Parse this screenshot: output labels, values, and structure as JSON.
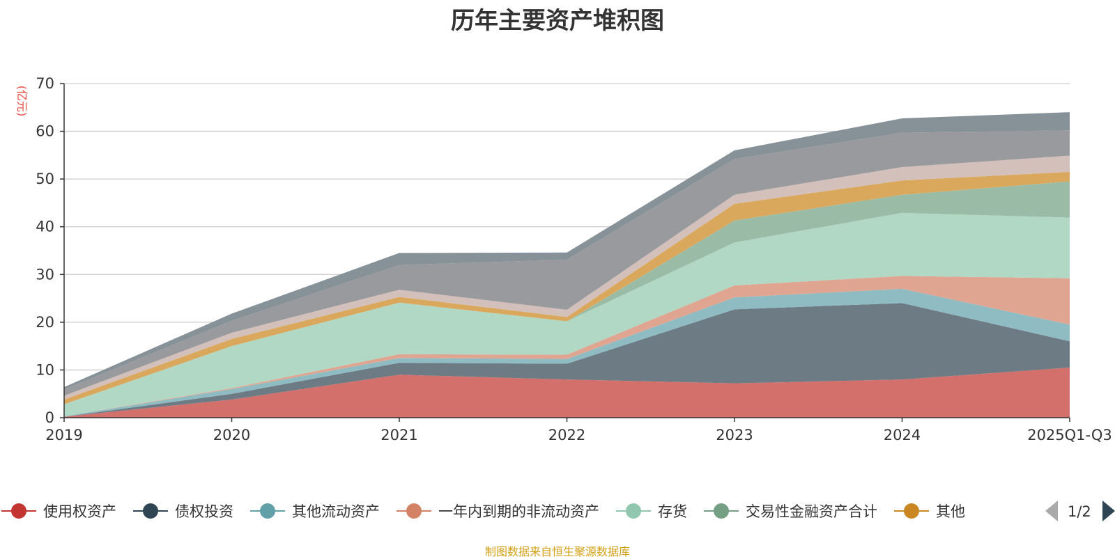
{
  "chart_data": {
    "type": "area",
    "stacked": true,
    "title": "历年主要资产堆积图",
    "ylabel": "(亿元)",
    "xlabel": "",
    "ylim": [
      0,
      70
    ],
    "yticks": [
      0,
      10,
      20,
      30,
      40,
      50,
      60,
      70
    ],
    "categories": [
      "2019",
      "2020",
      "2021",
      "2022",
      "2023",
      "2024",
      "2025Q1-Q3"
    ],
    "series": [
      {
        "name": "使用权资产",
        "color": "#c23531",
        "fill": "#d4706c",
        "values": [
          0.2,
          3.8,
          9.0,
          8.0,
          7.2,
          8.0,
          10.5
        ]
      },
      {
        "name": "债权投资",
        "color": "#2f4554",
        "fill": "#6d7b85",
        "values": [
          0.0,
          1.2,
          2.5,
          3.3,
          15.5,
          16.0,
          5.5
        ]
      },
      {
        "name": "其他流动资产",
        "color": "#61a0a8",
        "fill": "#8fbcc2",
        "values": [
          0.1,
          1.0,
          1.0,
          1.0,
          2.5,
          3.0,
          3.5
        ]
      },
      {
        "name": "一年内到期的非流动资产",
        "color": "#d48265",
        "fill": "#e0a591",
        "values": [
          0.0,
          0.2,
          0.8,
          0.9,
          2.5,
          2.7,
          9.7
        ]
      },
      {
        "name": "存货",
        "color": "#91c7ae",
        "fill": "#b0d8c5",
        "values": [
          2.5,
          8.8,
          10.8,
          7.0,
          9.0,
          13.2,
          12.7
        ]
      },
      {
        "name": "交易性金融资产合计",
        "color": "#749f83",
        "fill": "#9abca6",
        "values": [
          0.0,
          0.0,
          0.0,
          0.0,
          4.6,
          3.8,
          7.6
        ]
      },
      {
        "name": "其他",
        "color": "#ca8622",
        "fill": "#daa85c",
        "values": [
          1.0,
          1.5,
          1.2,
          0.9,
          3.5,
          3.0,
          2.0
        ]
      },
      {
        "name": "",
        "color": "#bda29a",
        "fill": "#d3c0ba",
        "values": [
          0.8,
          1.3,
          1.5,
          1.5,
          1.9,
          2.8,
          3.4
        ]
      },
      {
        "name": "",
        "color": "#6e7074",
        "fill": "#999a9e",
        "values": [
          1.3,
          2.5,
          5.2,
          10.5,
          7.5,
          7.2,
          5.3
        ]
      },
      {
        "name": "",
        "color": "#546570",
        "fill": "#879198",
        "values": [
          0.5,
          1.5,
          2.5,
          1.5,
          1.8,
          3.0,
          3.8
        ]
      }
    ]
  },
  "legend": {
    "page_indicator": "1/2",
    "prev_icon": "triangle-left-icon",
    "next_icon": "triangle-right-icon"
  },
  "colors": {
    "axis": "#333333",
    "grid": "#cccccc",
    "unit_label": "#e8473f",
    "footer": "#d4a017",
    "pager_disabled": "#aaaaaa",
    "pager_active": "#2f4554"
  },
  "footer": {
    "source_text": "制图数据来自恒生聚源数据库"
  }
}
